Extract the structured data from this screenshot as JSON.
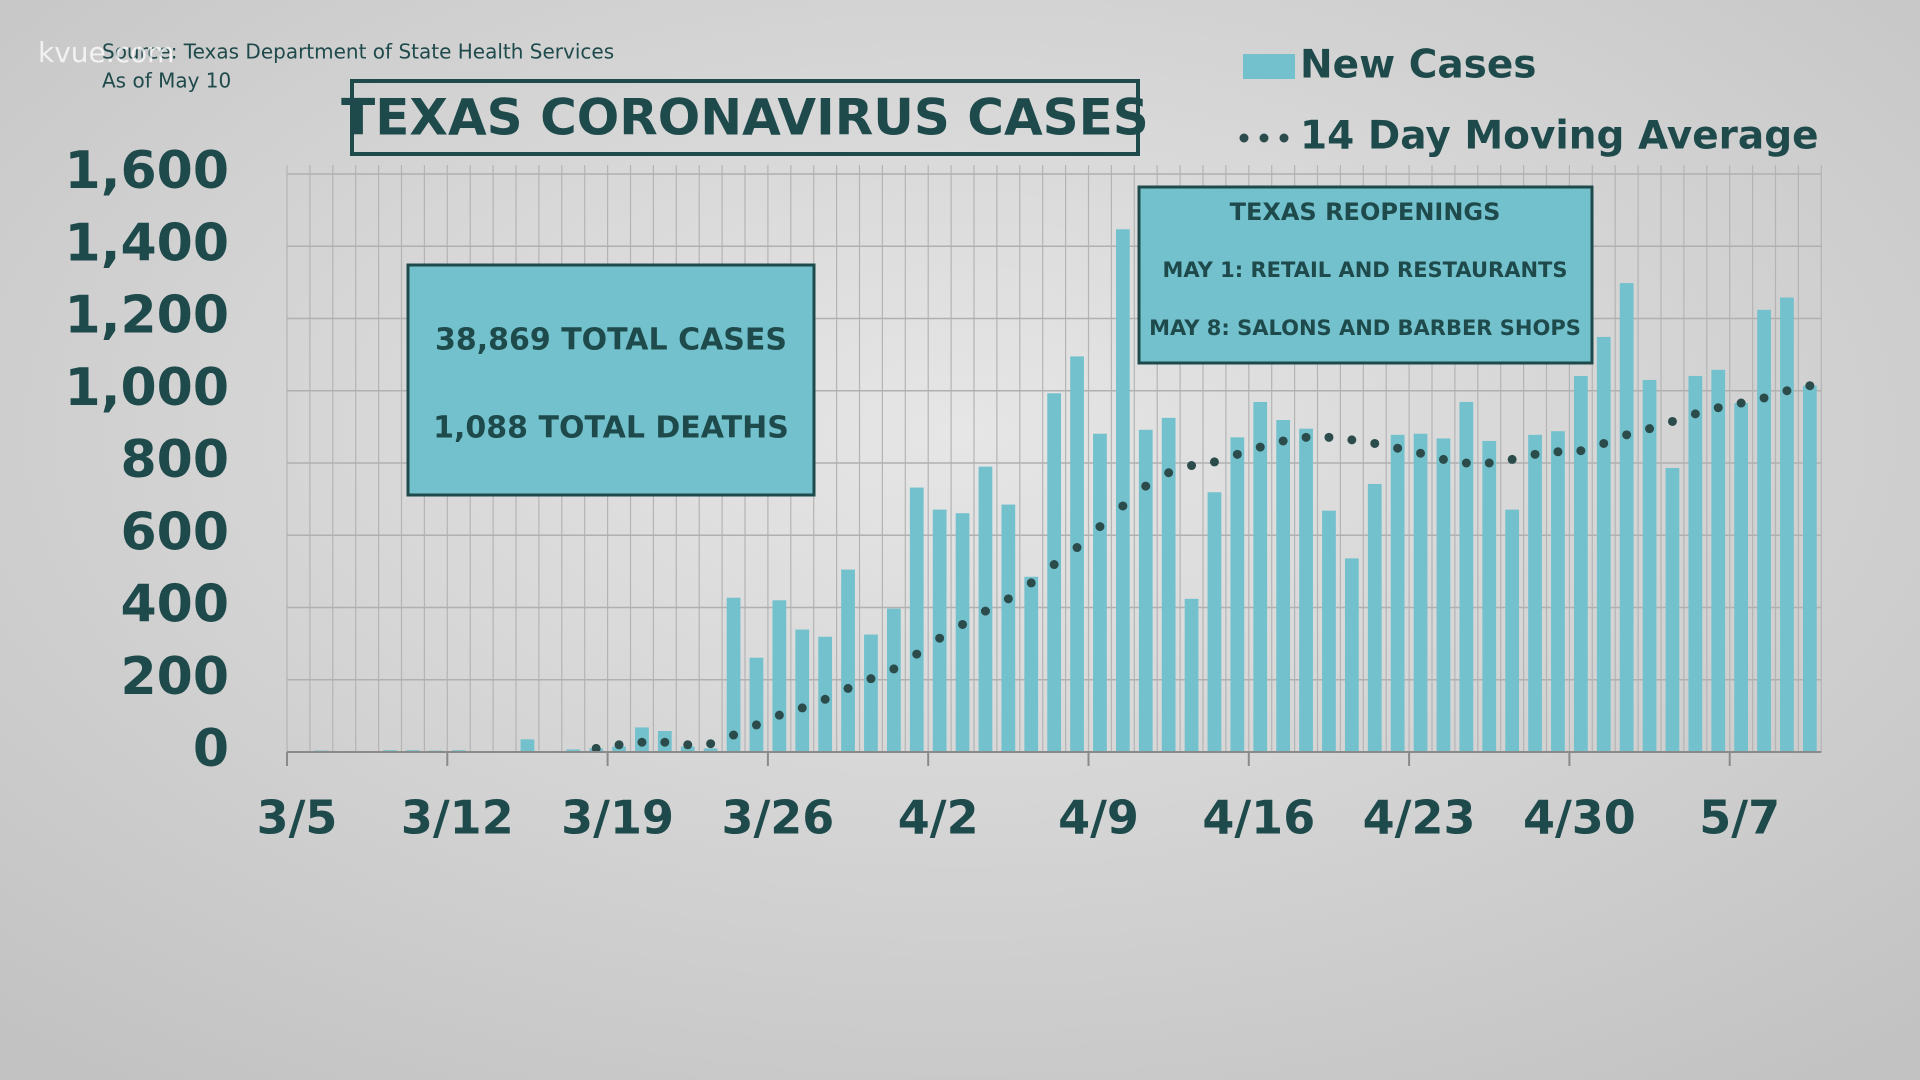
{
  "chart_data": {
    "type": "bar",
    "watermark": "kvue.com",
    "source": "Source: Texas Department of State Health Services",
    "subtitle": "As of May 10",
    "title": "TEXAS CORONAVIRUS CASES",
    "annotations": [
      {
        "lines": [
          "38,869 TOTAL CASES",
          "1,088 TOTAL DEATHS"
        ]
      },
      {
        "title": "TEXAS REOPENINGS",
        "lines": [
          "MAY 1: RETAIL AND RESTAURANTS",
          "MAY 8: SALONS AND BARBER SHOPS"
        ]
      }
    ],
    "categories": [
      "3/5",
      null,
      null,
      null,
      null,
      null,
      null,
      "3/12",
      null,
      null,
      null,
      null,
      null,
      null,
      "3/19",
      null,
      null,
      null,
      null,
      null,
      null,
      "3/26",
      null,
      null,
      null,
      null,
      null,
      null,
      "4/2",
      null,
      null,
      null,
      null,
      null,
      null,
      "4/9",
      null,
      null,
      null,
      null,
      null,
      null,
      "4/16",
      null,
      null,
      null,
      null,
      null,
      null,
      "4/23",
      null,
      null,
      null,
      null,
      null,
      null,
      "4/30",
      null,
      null,
      null,
      null,
      null,
      null,
      "5/7",
      null,
      null,
      null
    ],
    "series": [
      {
        "name": "New Cases",
        "type": "bar",
        "color": "#72c1cd",
        "values": [
          0,
          4,
          0,
          0,
          5,
          5,
          4,
          5,
          0,
          0,
          35,
          0,
          7,
          10,
          15,
          68,
          58,
          15,
          10,
          427,
          261,
          420,
          339,
          319,
          505,
          325,
          397,
          732,
          671,
          661,
          790,
          685,
          485,
          993,
          1095,
          881,
          1447,
          892,
          925,
          424,
          719,
          871,
          969,
          919,
          895,
          668,
          536,
          742,
          878,
          881,
          868,
          969,
          861,
          671,
          878,
          888,
          1041,
          1149,
          1298,
          1030,
          786,
          1041,
          1058,
          966,
          1224,
          1258,
          1014
        ]
      },
      {
        "name": "14 Day Moving Average",
        "type": "line",
        "color": "#2c4c4c",
        "values": [
          null,
          null,
          null,
          null,
          null,
          null,
          null,
          null,
          null,
          null,
          null,
          null,
          null,
          10,
          20,
          27,
          27,
          20,
          23,
          47,
          75,
          102,
          122,
          146,
          176,
          203,
          230,
          271,
          315,
          353,
          390,
          424,
          468,
          519,
          566,
          624,
          681,
          736,
          773,
          793,
          803,
          824,
          844,
          861,
          871,
          871,
          864,
          854,
          841,
          827,
          810,
          800,
          800,
          810,
          824,
          831,
          834,
          854,
          878,
          895,
          915,
          936,
          953,
          966,
          980,
          1000,
          1014
        ]
      }
    ],
    "ylim": [
      0,
      1600
    ],
    "yticks": [
      0,
      200,
      400,
      600,
      800,
      {
        "value": 1000,
        "label": "1,000"
      },
      {
        "value": 1200,
        "label": "1,200"
      },
      {
        "value": 1400,
        "label": "1,400"
      },
      {
        "value": 1600,
        "label": "1,600"
      }
    ],
    "grid": true
  }
}
